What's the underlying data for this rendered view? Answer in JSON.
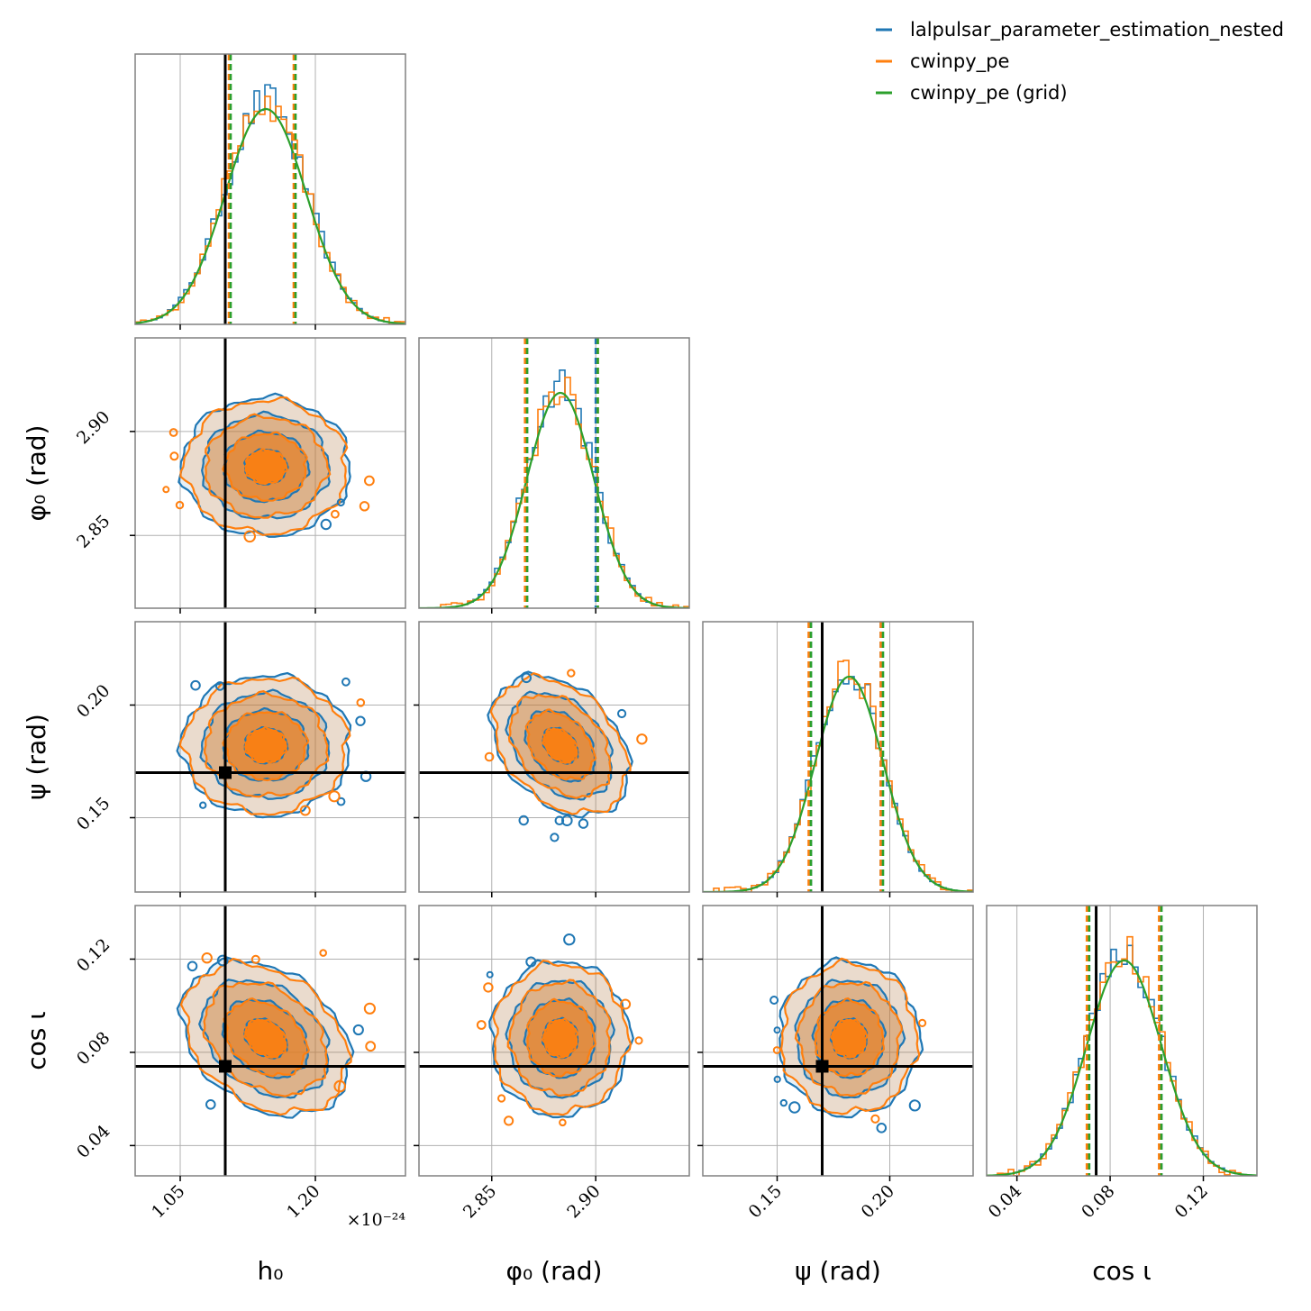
{
  "colors": {
    "series_1": "#1f77b4",
    "series_2": "#ff7f0e",
    "series_3": "#2ca02c",
    "truth": "#000000",
    "grid": "#b0b0b0",
    "frame": "#808080"
  },
  "legend": {
    "placement": "top-right",
    "entries": [
      {
        "label": "lalpulsar_parameter_estimation_nested",
        "color": "#1f77b4"
      },
      {
        "label": "cwinpy_pe",
        "color": "#ff7f0e"
      },
      {
        "label": "cwinpy_pe (grid)",
        "color": "#2ca02c"
      }
    ]
  },
  "chart_data": {
    "type": "corner",
    "grid": true,
    "parameters": [
      {
        "key": "h0",
        "label": "h₀",
        "unit": "",
        "tick_labels": [
          "1.05",
          "1.20"
        ],
        "ticks": [
          1.05,
          1.2
        ],
        "range": [
          1.0,
          1.3
        ],
        "offset_label": "×10⁻²⁴",
        "truth": 1.1,
        "mean": 1.145,
        "sd": 0.045,
        "quantiles": {
          "series_1": [
            1.105,
            1.177
          ],
          "series_2": [
            1.104,
            1.176
          ],
          "series_3": [
            1.106,
            1.178
          ]
        }
      },
      {
        "key": "phi0",
        "label": "φ₀ (rad)",
        "unit": "rad",
        "tick_labels": [
          "2.85",
          "2.90"
        ],
        "ticks": [
          2.85,
          2.9
        ],
        "range": [
          2.815,
          2.945
        ],
        "truth": null,
        "mean": 2.883,
        "sd": 0.016,
        "quantiles": {
          "series_1": [
            2.867,
            2.9
          ],
          "series_2": [
            2.866,
            2.901
          ],
          "series_3": [
            2.867,
            2.901
          ]
        }
      },
      {
        "key": "psi",
        "label": "ψ (rad)",
        "unit": "rad",
        "tick_labels": [
          "0.15",
          "0.20"
        ],
        "ticks": [
          0.15,
          0.2
        ],
        "range": [
          0.117,
          0.237
        ],
        "truth": 0.17,
        "mean": 0.182,
        "sd": 0.015,
        "quantiles": {
          "series_1": [
            0.165,
            0.196
          ],
          "series_2": [
            0.164,
            0.196
          ],
          "series_3": [
            0.165,
            0.197
          ]
        }
      },
      {
        "key": "cosi",
        "label": "cos ι",
        "unit": "",
        "tick_labels": [
          "0.04",
          "0.08",
          "0.12"
        ],
        "ticks": [
          0.04,
          0.08,
          0.12
        ],
        "range": [
          0.027,
          0.143
        ],
        "truth": 0.074,
        "mean": 0.086,
        "sd": 0.016,
        "quantiles": {
          "series_1": [
            0.071,
            0.102
          ],
          "series_2": [
            0.07,
            0.101
          ],
          "series_3": [
            0.071,
            0.102
          ]
        }
      }
    ],
    "correlations": {
      "h0-phi0": 0.0,
      "h0-psi": 0.0,
      "h0-cosi": -0.3,
      "phi0-psi": -0.35,
      "phi0-cosi": 0.0,
      "psi-cosi": 0.0
    },
    "contour_levels_sigma": [
      0.5,
      1.0,
      1.5,
      2.0
    ]
  }
}
